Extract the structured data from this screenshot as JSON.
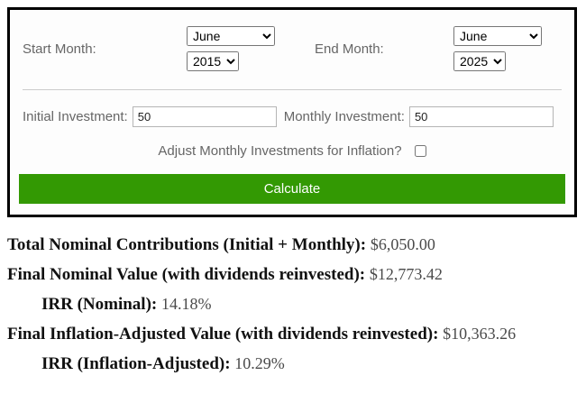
{
  "form": {
    "start_month_label": "Start Month:",
    "start_month_value": "June",
    "start_year_value": "2015",
    "end_month_label": "End Month:",
    "end_month_value": "June",
    "end_year_value": "2025",
    "initial_investment_label": "Initial Investment:",
    "initial_investment_value": "50",
    "monthly_investment_label": "Monthly Investment:",
    "monthly_investment_value": "50",
    "inflation_checkbox_label": "Adjust Monthly Investments for Inflation?",
    "calculate_button_label": "Calculate",
    "button_color": "#339903"
  },
  "results": {
    "rows": [
      {
        "label": "Total Nominal Contributions (Initial + Monthly):",
        "value": "$6,050.00"
      },
      {
        "label": "Final Nominal Value (with dividends reinvested):",
        "value": "$12,773.42"
      },
      {
        "label": "IRR (Nominal):",
        "value": "14.18%"
      },
      {
        "label": "Final Inflation-Adjusted Value (with dividends reinvested):",
        "value": "$10,363.26"
      },
      {
        "label": "IRR (Inflation-Adjusted):",
        "value": "10.29%"
      }
    ]
  }
}
